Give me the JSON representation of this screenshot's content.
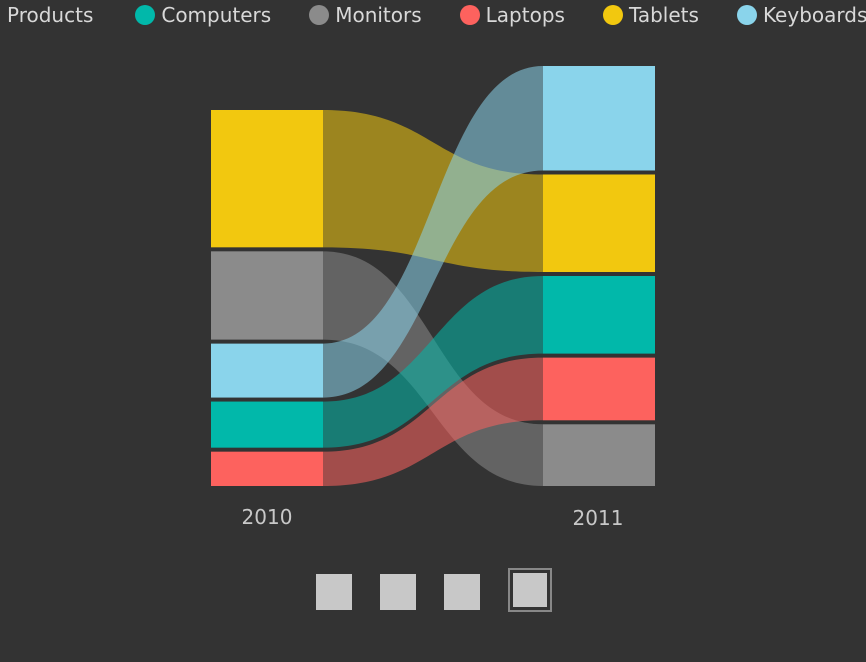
{
  "legend": {
    "title": "Products",
    "items": [
      {
        "label": "Computers",
        "color": "#01b8aa"
      },
      {
        "label": "Monitors",
        "color": "#8b8b8b"
      },
      {
        "label": "Laptops",
        "color": "#fd625e"
      },
      {
        "label": "Tablets",
        "color": "#f2c80f"
      },
      {
        "label": "Keyboards",
        "color": "#8ad4eb"
      }
    ]
  },
  "chart_data": {
    "type": "sankey",
    "columns": [
      "2010",
      "2011"
    ],
    "colors": {
      "Computers": "#01b8aa",
      "Monitors": "#8b8b8b",
      "Laptops": "#fd625e",
      "Tablets": "#f2c80f",
      "Keyboards": "#8ad4eb"
    },
    "order_2010": [
      "Tablets",
      "Monitors",
      "Keyboards",
      "Computers",
      "Laptops"
    ],
    "order_2011": [
      "Keyboards",
      "Tablets",
      "Computers",
      "Laptops",
      "Monitors"
    ],
    "values_2010": {
      "Tablets": 140,
      "Monitors": 90,
      "Keyboards": 55,
      "Computers": 47,
      "Laptops": 35
    },
    "values_2011": {
      "Keyboards": 105,
      "Tablets": 98,
      "Computers": 78,
      "Laptops": 63,
      "Monitors": 62
    }
  },
  "pager": {
    "pages": 4,
    "active": 4
  }
}
